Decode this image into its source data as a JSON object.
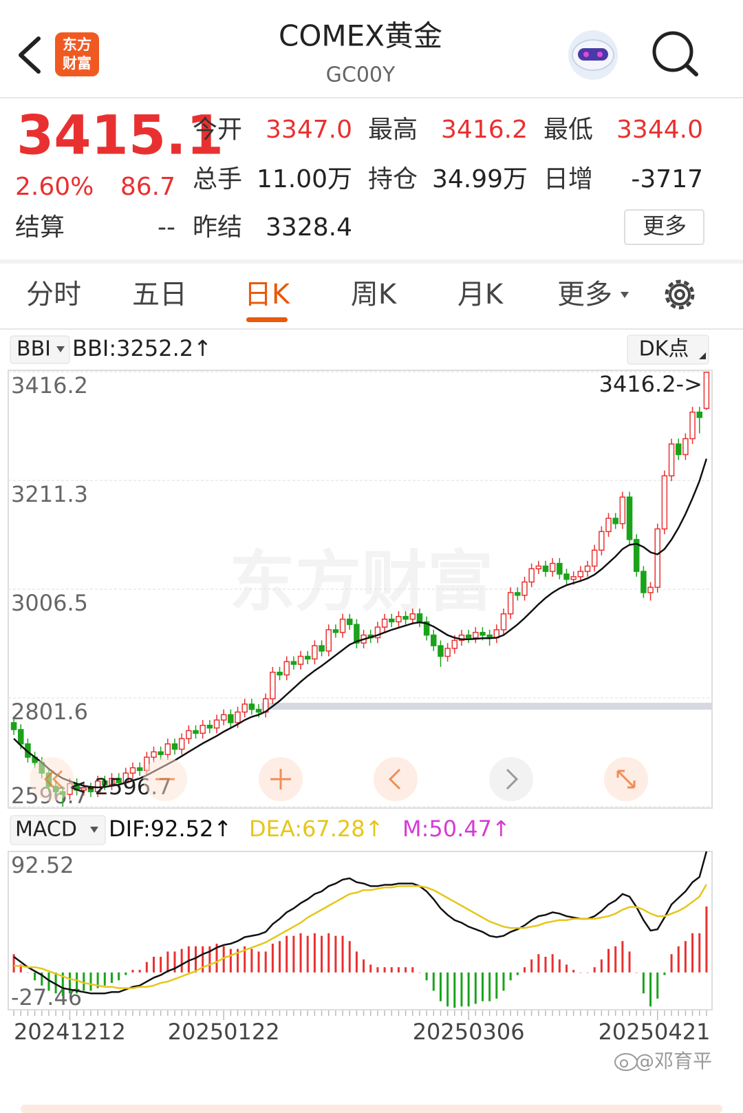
{
  "header": {
    "title": "COMEX黄金",
    "code": "GC00Y",
    "logo_lines": [
      "东方",
      "财富"
    ]
  },
  "quote": {
    "price": "3415.1",
    "change_pct": "2.60%",
    "change": "86.7",
    "color": "#e93030",
    "settle_label": "结算",
    "settle_value": "--",
    "more": "更多",
    "rows": [
      [
        {
          "label": "今开",
          "value": "3347.0",
          "color": "#e93030"
        },
        {
          "label": "最高",
          "value": "3416.2",
          "color": "#e93030"
        },
        {
          "label": "最低",
          "value": "3344.0",
          "color": "#e93030"
        }
      ],
      [
        {
          "label": "总手",
          "value": "11.00万"
        },
        {
          "label": "持仓",
          "value": "34.99万"
        },
        {
          "label": "日增",
          "value": "-3717"
        }
      ],
      [
        {
          "label": "昨结",
          "value": "3328.4"
        }
      ]
    ]
  },
  "tabs": {
    "items": [
      "分时",
      "五日",
      "日K",
      "周K",
      "月K",
      "更多"
    ],
    "active": 2
  },
  "indicators": {
    "main": "BBI",
    "sub": "MACD",
    "dk": "DK点"
  },
  "watermark": "东方财富",
  "footer": {
    "watermark": "@邓育平"
  },
  "chart_data": [
    {
      "type": "candlestick",
      "up_color": "#e93030",
      "down_color": "#1aa31a",
      "grid": true,
      "ylim": [
        2596.7,
        3416.2
      ],
      "yticks": [
        3416.2,
        3211.3,
        3006.5,
        2801.6,
        2596.7
      ],
      "open": [
        2755,
        2742,
        2715,
        2690,
        2680,
        2660,
        2635,
        2625,
        2620,
        2640,
        2628,
        2632,
        2625,
        2645,
        2638,
        2650,
        2642,
        2660,
        2670,
        2665,
        2690,
        2700,
        2695,
        2715,
        2705,
        2725,
        2740,
        2735,
        2750,
        2745,
        2760,
        2770,
        2755,
        2775,
        2790,
        2780,
        2775,
        2800,
        2850,
        2845,
        2870,
        2865,
        2880,
        2875,
        2900,
        2890,
        2930,
        2925,
        2950,
        2940,
        2905,
        2920,
        2915,
        2935,
        2950,
        2945,
        2955,
        2950,
        2960,
        2945,
        2920,
        2900,
        2880,
        2895,
        2910,
        2920,
        2915,
        2925,
        2920,
        2915,
        2930,
        2960,
        3000,
        2995,
        3020,
        3045,
        3050,
        3040,
        3055,
        3035,
        3025,
        3030,
        3040,
        3050,
        3080,
        3115,
        3140,
        3130,
        3180,
        3100,
        3040,
        3000,
        3010,
        3120,
        3220,
        3280,
        3260,
        3290,
        3340,
        3347.0
      ],
      "high": [
        2765,
        2752,
        2725,
        2700,
        2690,
        2670,
        2645,
        2635,
        2650,
        2650,
        2642,
        2642,
        2655,
        2655,
        2660,
        2660,
        2670,
        2680,
        2680,
        2700,
        2710,
        2710,
        2725,
        2725,
        2735,
        2750,
        2750,
        2760,
        2760,
        2770,
        2780,
        2780,
        2785,
        2800,
        2800,
        2790,
        2810,
        2860,
        2860,
        2880,
        2880,
        2890,
        2890,
        2910,
        2910,
        2940,
        2940,
        2960,
        2960,
        2950,
        2930,
        2930,
        2945,
        2960,
        2960,
        2965,
        2965,
        2970,
        2970,
        2955,
        2930,
        2910,
        2905,
        2920,
        2930,
        2930,
        2935,
        2935,
        2930,
        2940,
        2970,
        3010,
        3010,
        3030,
        3055,
        3060,
        3060,
        3065,
        3065,
        3045,
        3040,
        3050,
        3060,
        3090,
        3125,
        3150,
        3150,
        3190,
        3190,
        3110,
        3050,
        3020,
        3130,
        3230,
        3290,
        3290,
        3300,
        3350,
        3350,
        3416.2
      ],
      "low": [
        2732,
        2705,
        2680,
        2670,
        2650,
        2625,
        2615,
        2596.7,
        2610,
        2618,
        2618,
        2615,
        2615,
        2628,
        2628,
        2632,
        2632,
        2650,
        2655,
        2655,
        2680,
        2685,
        2685,
        2695,
        2695,
        2715,
        2725,
        2725,
        2735,
        2735,
        2750,
        2745,
        2745,
        2765,
        2770,
        2765,
        2765,
        2790,
        2835,
        2835,
        2855,
        2855,
        2865,
        2865,
        2880,
        2880,
        2915,
        2915,
        2930,
        2895,
        2895,
        2905,
        2905,
        2925,
        2935,
        2935,
        2940,
        2940,
        2935,
        2910,
        2890,
        2860,
        2870,
        2885,
        2900,
        2905,
        2905,
        2910,
        2900,
        2905,
        2920,
        2950,
        2985,
        2985,
        3010,
        3035,
        3030,
        3030,
        3025,
        3015,
        3015,
        3020,
        3030,
        3040,
        3070,
        3105,
        3120,
        3120,
        3090,
        3030,
        2990,
        2985,
        3000,
        3110,
        3210,
        3250,
        3250,
        3280,
        3300,
        3344.0
      ],
      "close": [
        2742,
        2715,
        2690,
        2680,
        2660,
        2635,
        2625,
        2620,
        2640,
        2628,
        2632,
        2625,
        2645,
        2638,
        2650,
        2642,
        2660,
        2670,
        2665,
        2690,
        2700,
        2695,
        2715,
        2705,
        2725,
        2740,
        2735,
        2750,
        2745,
        2760,
        2770,
        2755,
        2775,
        2790,
        2780,
        2775,
        2800,
        2850,
        2845,
        2870,
        2865,
        2880,
        2875,
        2900,
        2890,
        2930,
        2925,
        2950,
        2940,
        2905,
        2920,
        2915,
        2935,
        2950,
        2945,
        2955,
        2950,
        2960,
        2945,
        2920,
        2900,
        2880,
        2895,
        2910,
        2920,
        2915,
        2925,
        2920,
        2915,
        2930,
        2960,
        3000,
        2995,
        3020,
        3045,
        3050,
        3040,
        3055,
        3035,
        3025,
        3030,
        3040,
        3050,
        3080,
        3115,
        3140,
        3130,
        3180,
        3100,
        3040,
        3000,
        3010,
        3120,
        3220,
        3280,
        3260,
        3290,
        3340,
        3330,
        3415.1
      ],
      "series": [
        {
          "name": "BBI:3252.2↑",
          "color": "#111111",
          "values": [
            2725,
            2712,
            2700,
            2690,
            2680,
            2668,
            2658,
            2650,
            2645,
            2640,
            2636,
            2634,
            2633,
            2634,
            2636,
            2638,
            2642,
            2646,
            2650,
            2656,
            2663,
            2670,
            2677,
            2684,
            2692,
            2700,
            2708,
            2716,
            2723,
            2730,
            2738,
            2745,
            2752,
            2760,
            2766,
            2770,
            2776,
            2786,
            2796,
            2808,
            2820,
            2832,
            2843,
            2853,
            2862,
            2872,
            2882,
            2892,
            2902,
            2908,
            2912,
            2916,
            2920,
            2925,
            2930,
            2934,
            2938,
            2942,
            2944,
            2942,
            2936,
            2928,
            2920,
            2915,
            2912,
            2912,
            2913,
            2914,
            2914,
            2915,
            2920,
            2930,
            2940,
            2952,
            2965,
            2978,
            2990,
            3000,
            3008,
            3014,
            3018,
            3022,
            3027,
            3034,
            3044,
            3056,
            3068,
            3082,
            3090,
            3092,
            3086,
            3076,
            3072,
            3082,
            3100,
            3122,
            3148,
            3178,
            3210,
            3252.2
          ]
        }
      ],
      "annotations": {
        "max_label": "3416.2->",
        "min_label": "<-2596.7"
      }
    },
    {
      "type": "macd",
      "up_color": "#e93030",
      "down_color": "#1aa31a",
      "ylim": [
        -27.46,
        92.52
      ],
      "yticks": [
        92.52,
        -27.46
      ],
      "categories": [
        null,
        null,
        null,
        null,
        null,
        null,
        null,
        null,
        "20241212",
        null,
        null,
        null,
        null,
        null,
        null,
        null,
        null,
        null,
        null,
        null,
        null,
        null,
        null,
        null,
        null,
        null,
        null,
        null,
        null,
        null,
        "20250122",
        null,
        null,
        null,
        null,
        null,
        null,
        null,
        null,
        null,
        null,
        null,
        null,
        null,
        null,
        null,
        null,
        null,
        null,
        null,
        null,
        null,
        null,
        null,
        null,
        null,
        null,
        null,
        null,
        null,
        null,
        null,
        null,
        null,
        null,
        "20250306",
        null,
        null,
        null,
        null,
        null,
        null,
        null,
        null,
        null,
        null,
        null,
        null,
        null,
        null,
        null,
        null,
        null,
        null,
        null,
        null,
        null,
        null,
        null,
        null,
        null,
        null,
        "20250421",
        null,
        null,
        null,
        null,
        null,
        null,
        null
      ],
      "series": [
        {
          "name": "DIF:92.52↑",
          "type": "line",
          "color": "#111111",
          "values": [
            12,
            8,
            4,
            1,
            -2,
            -6,
            -9,
            -12,
            -13,
            -14,
            -15,
            -16,
            -16,
            -16,
            -15,
            -15,
            -13,
            -11,
            -10,
            -7,
            -4,
            -2,
            1,
            3,
            6,
            9,
            11,
            14,
            16,
            19,
            21,
            22,
            24,
            27,
            28,
            29,
            31,
            37,
            41,
            46,
            49,
            53,
            56,
            60,
            62,
            66,
            68,
            71,
            72,
            69,
            68,
            66,
            66,
            67,
            67,
            68,
            68,
            68,
            66,
            62,
            56,
            49,
            44,
            40,
            38,
            35,
            33,
            31,
            28,
            27,
            28,
            31,
            33,
            36,
            40,
            43,
            44,
            46,
            45,
            43,
            42,
            41,
            41,
            43,
            47,
            52,
            55,
            60,
            58,
            50,
            40,
            32,
            33,
            42,
            52,
            57,
            62,
            69,
            73,
            92.52
          ]
        },
        {
          "name": "DEA:67.28↑",
          "type": "line",
          "color": "#e6c619",
          "values": [
            5,
            5,
            4,
            4,
            3,
            1,
            -1,
            -3,
            -5,
            -6,
            -8,
            -9,
            -10,
            -11,
            -11,
            -12,
            -12,
            -12,
            -11,
            -11,
            -10,
            -8,
            -7,
            -5,
            -3,
            -1,
            1,
            4,
            6,
            8,
            11,
            13,
            15,
            17,
            19,
            21,
            23,
            26,
            29,
            32,
            35,
            38,
            42,
            45,
            48,
            51,
            54,
            57,
            60,
            61,
            63,
            63,
            64,
            65,
            65,
            66,
            66,
            66,
            66,
            65,
            63,
            60,
            57,
            54,
            51,
            48,
            45,
            42,
            39,
            37,
            35,
            34,
            34,
            34,
            35,
            36,
            38,
            39,
            40,
            40,
            41,
            41,
            41,
            41,
            42,
            43,
            45,
            48,
            50,
            50,
            48,
            45,
            43,
            43,
            45,
            47,
            50,
            54,
            58,
            67.28
          ]
        },
        {
          "name": "M:50.47↑",
          "type": "bar",
          "color": "#d63ad6",
          "values": [
            14,
            6,
            0,
            -6,
            -10,
            -14,
            -16,
            -18,
            -16,
            -16,
            -14,
            -14,
            -12,
            -10,
            -8,
            -6,
            -2,
            2,
            2,
            8,
            12,
            12,
            16,
            16,
            18,
            20,
            20,
            20,
            20,
            22,
            20,
            18,
            18,
            20,
            18,
            16,
            16,
            22,
            24,
            28,
            28,
            30,
            28,
            30,
            28,
            30,
            28,
            28,
            24,
            16,
            10,
            6,
            4,
            4,
            4,
            4,
            4,
            4,
            0,
            -6,
            -14,
            -22,
            -26,
            -27,
            -26,
            -26,
            -24,
            -22,
            -22,
            -20,
            -14,
            -6,
            -2,
            4,
            10,
            14,
            12,
            14,
            10,
            6,
            2,
            0,
            0,
            4,
            10,
            18,
            20,
            24,
            16,
            0,
            -16,
            -26,
            -20,
            -2,
            14,
            20,
            24,
            30,
            30,
            50.47
          ]
        }
      ]
    }
  ]
}
